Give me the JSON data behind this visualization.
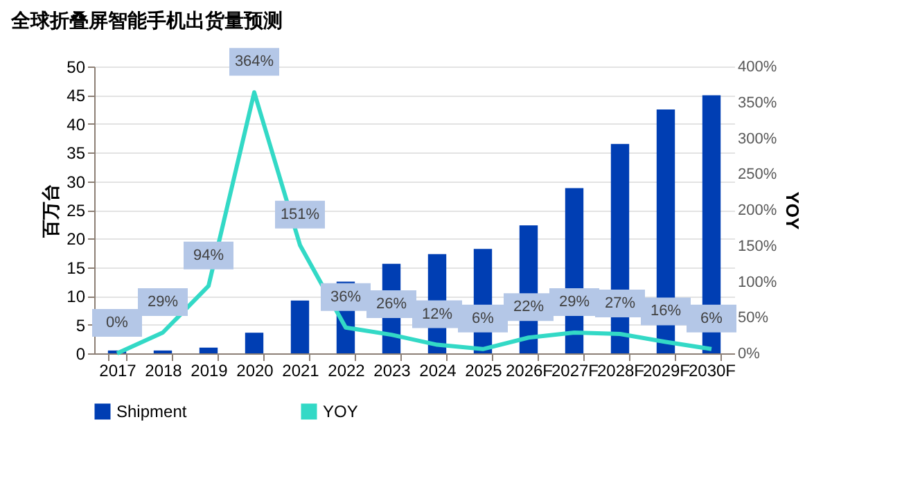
{
  "chart_data": {
    "type": "bar",
    "title": "全球折叠屏智能手机出货量预测",
    "ylabel": "百万台",
    "y2label": "YOY",
    "categories": [
      "2017",
      "2018",
      "2019",
      "2020",
      "2021",
      "2022",
      "2023",
      "2024",
      "2025",
      "2026F",
      "2027F",
      "2028F",
      "2029F",
      "2030F"
    ],
    "series": [
      {
        "name": "Shipment",
        "color": "#003eb3",
        "values": [
          0.5,
          0.5,
          1,
          3.6,
          9.2,
          12.5,
          15.6,
          17.3,
          18.2,
          22.3,
          28.8,
          36.5,
          42.5,
          45
        ]
      },
      {
        "name": "YOY",
        "type": "line",
        "axis": "y2",
        "color": "#33d9c6",
        "values": [
          0,
          29,
          94,
          364,
          151,
          36,
          26,
          12,
          6,
          22,
          29,
          27,
          16,
          6
        ],
        "value_labels": [
          "0%",
          "29%",
          "94%",
          "364%",
          "151%",
          "36%",
          "26%",
          "12%",
          "6%",
          "22%",
          "29%",
          "27%",
          "16%",
          "6%"
        ]
      }
    ],
    "ylim": [
      0,
      50
    ],
    "yticks": [
      0,
      5,
      10,
      15,
      20,
      25,
      30,
      35,
      40,
      45,
      50
    ],
    "y2lim": [
      0,
      400
    ],
    "y2ticks": [
      {
        "value": 0,
        "label": "0%"
      },
      {
        "value": 50,
        "label": "50%"
      },
      {
        "value": 100,
        "label": "100%"
      },
      {
        "value": 150,
        "label": "150%"
      },
      {
        "value": 200,
        "label": "200%"
      },
      {
        "value": 250,
        "label": "250%"
      },
      {
        "value": 300,
        "label": "300%"
      },
      {
        "value": 350,
        "label": "350%"
      },
      {
        "value": 400,
        "label": "400%"
      }
    ],
    "grid": "y",
    "legend": "bottom"
  }
}
